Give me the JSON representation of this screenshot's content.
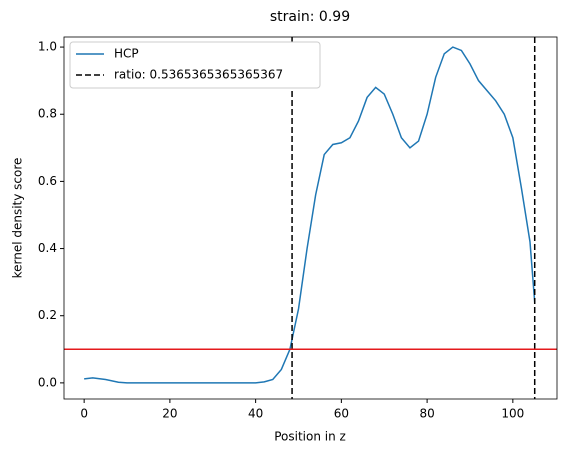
{
  "chart_data": {
    "type": "line",
    "title": "strain: 0.99",
    "x_label": "Position in z",
    "y_label": "kernel density score",
    "x": [
      0,
      2,
      5,
      8,
      10,
      20,
      30,
      40,
      42,
      44,
      46,
      48,
      50,
      52,
      54,
      56,
      58,
      60,
      62,
      64,
      66,
      68,
      70,
      72,
      74,
      76,
      78,
      80,
      82,
      84,
      86,
      88,
      90,
      92,
      94,
      96,
      98,
      100,
      102,
      104,
      105.1
    ],
    "series": [
      {
        "name": "HCP",
        "color": "#1f77b4",
        "values": [
          0.012,
          0.015,
          0.01,
          0.002,
          0,
          0,
          0,
          0,
          0.003,
          0.01,
          0.04,
          0.1,
          0.22,
          0.4,
          0.56,
          0.68,
          0.71,
          0.715,
          0.73,
          0.78,
          0.85,
          0.88,
          0.86,
          0.8,
          0.73,
          0.7,
          0.72,
          0.8,
          0.91,
          0.98,
          1.0,
          0.99,
          0.95,
          0.9,
          0.87,
          0.84,
          0.8,
          0.73,
          0.58,
          0.42,
          0.24
        ]
      }
    ],
    "vlines": {
      "name": "ratio: 0.5365365365365367",
      "color": "#000000",
      "x": [
        48.5,
        105.1
      ]
    },
    "hline": {
      "color": "#e41a1c",
      "y": 0.1
    },
    "xlim": [
      -4.7,
      110.3
    ],
    "ylim": [
      -0.048,
      1.03
    ],
    "xticks": [
      0,
      20,
      40,
      60,
      80,
      100
    ],
    "yticks": [
      {
        "value": 0,
        "label": "0.0"
      },
      0.2,
      0.4,
      0.6,
      0.8,
      {
        "value": 1,
        "label": "1.0"
      }
    ],
    "legend": "upper left"
  }
}
